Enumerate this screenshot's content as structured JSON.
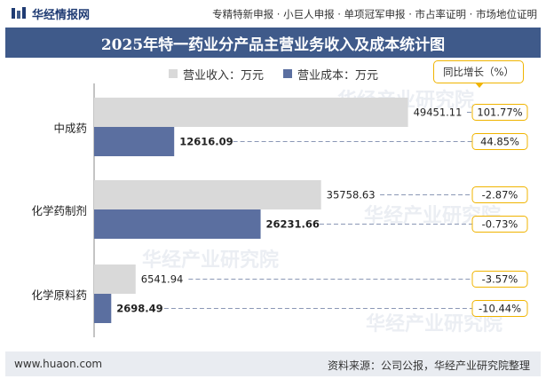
{
  "header": {
    "brand": "华经情报网",
    "links": "专精特新申报 · 小巨人申报 · 单项冠军申报 · 市占率证明 · 市场地位证明"
  },
  "colors": {
    "revenue": "#d9d9d9",
    "cost": "#5b6fa0",
    "title_bg": "#3f5a8a",
    "yoy_border": "#f0b400"
  },
  "watermark": {
    "text": "华经产业研究院",
    "domain": "www.huaon.com"
  },
  "footer": {
    "website": "www.huaon.com",
    "source": "资料来源：公司公报，华经产业研究院整理"
  },
  "chart_data": {
    "type": "bar",
    "orientation": "horizontal",
    "title": "2025年特一药业分产品主营业务收入及成本统计图",
    "yoy_label": "同比增长（%）",
    "categories": [
      "中成药",
      "化学药制剂",
      "化学原料药"
    ],
    "series": [
      {
        "name": "营业收入：万元",
        "values": [
          49451.11,
          35758.63,
          6541.94
        ],
        "labels": [
          "49451.11",
          "35758.63",
          "6541.94"
        ]
      },
      {
        "name": "营业成本：万元",
        "values": [
          12616.09,
          26231.66,
          2698.49
        ],
        "labels": [
          "12616.09",
          "26231.66",
          "2698.49"
        ]
      }
    ],
    "yoy": [
      [
        "101.77%",
        "44.85%"
      ],
      [
        "-2.87%",
        "-0.73%"
      ],
      [
        "-3.57%",
        "-10.44%"
      ]
    ],
    "xlim": [
      0,
      60000
    ],
    "grid": false,
    "legend": "top"
  }
}
